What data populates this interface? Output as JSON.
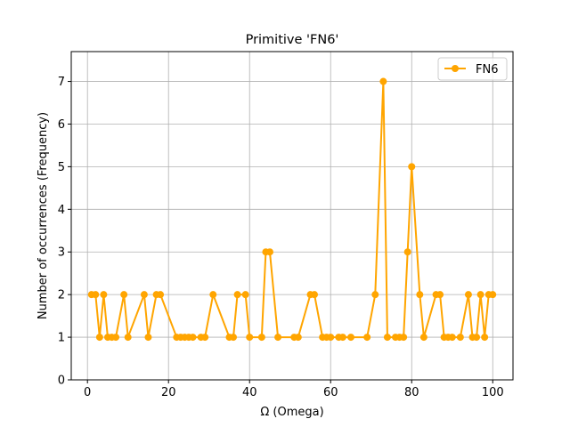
{
  "chart_data": {
    "type": "line",
    "title": "Primitive 'FN6'",
    "xlabel": "Ω (Omega)",
    "ylabel": "Number of occurrences (Frequency)",
    "xlim": [
      -4,
      105
    ],
    "ylim": [
      0,
      7.7
    ],
    "xticks": [
      "0",
      "20",
      "40",
      "60",
      "80",
      "100"
    ],
    "xtick_values": [
      0,
      20,
      40,
      60,
      80,
      100
    ],
    "yticks": [
      "0",
      "1",
      "2",
      "3",
      "4",
      "5",
      "6",
      "7"
    ],
    "ytick_values": [
      0,
      1,
      2,
      3,
      4,
      5,
      6,
      7
    ],
    "grid": true,
    "legend_position": "upper right",
    "series": [
      {
        "name": "FN6",
        "color": "#ffa500",
        "marker": "circle",
        "x": [
          1,
          2,
          3,
          4,
          5,
          6,
          7,
          9,
          10,
          14,
          15,
          17,
          18,
          22,
          23,
          24,
          25,
          26,
          28,
          29,
          31,
          35,
          36,
          37,
          39,
          40,
          43,
          44,
          45,
          47,
          51,
          52,
          55,
          56,
          58,
          59,
          60,
          62,
          63,
          65,
          69,
          71,
          73,
          74,
          76,
          77,
          78,
          79,
          80,
          82,
          83,
          86,
          87,
          88,
          89,
          90,
          92,
          94,
          95,
          96,
          97,
          98,
          99,
          100
        ],
        "y": [
          2,
          2,
          1,
          2,
          1,
          1,
          1,
          2,
          1,
          2,
          1,
          2,
          2,
          1,
          1,
          1,
          1,
          1,
          1,
          1,
          2,
          1,
          1,
          2,
          2,
          1,
          1,
          3,
          3,
          1,
          1,
          1,
          2,
          2,
          1,
          1,
          1,
          1,
          1,
          1,
          1,
          2,
          7,
          1,
          1,
          1,
          1,
          3,
          5,
          2,
          1,
          2,
          2,
          1,
          1,
          1,
          1,
          2,
          1,
          1,
          2,
          1,
          2,
          2
        ]
      }
    ]
  }
}
